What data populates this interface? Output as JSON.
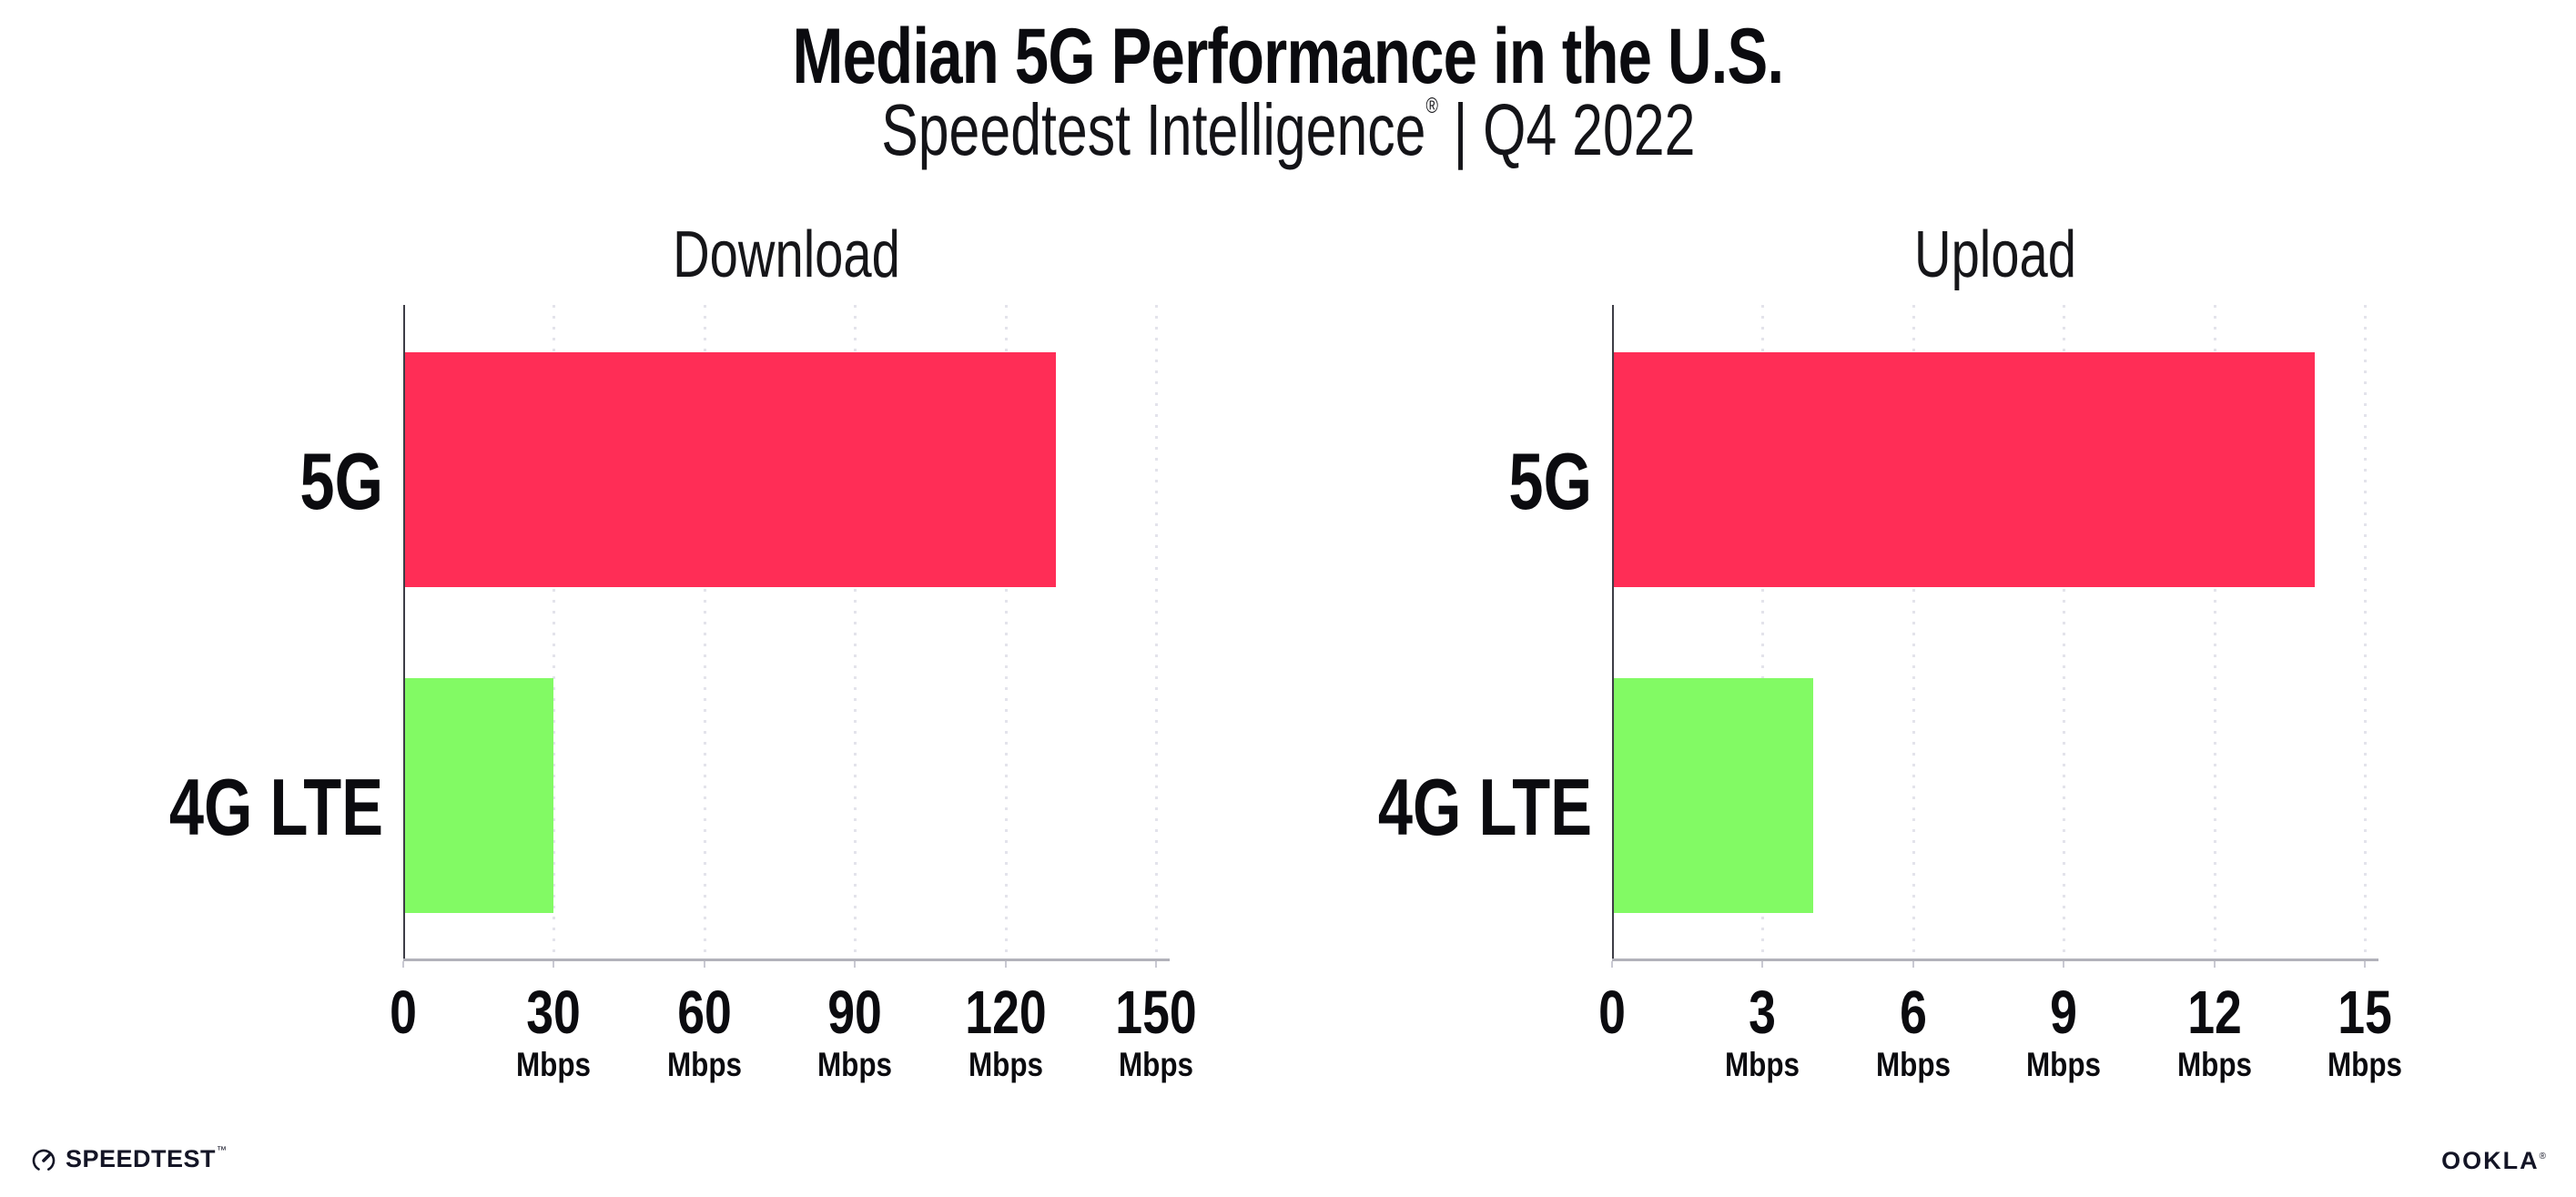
{
  "header": {
    "title": "Median 5G Performance in the U.S.",
    "subtitle_brand": "Speedtest Intelligence",
    "subtitle_registered": "®",
    "subtitle_separator": "|",
    "subtitle_period": "Q4 2022"
  },
  "chart_data": [
    {
      "type": "bar",
      "orientation": "horizontal",
      "title": "Download",
      "categories": [
        "5G",
        "4G LTE"
      ],
      "values": [
        130,
        30
      ],
      "unit": "Mbps",
      "xlim": [
        0,
        150
      ],
      "ticks": [
        0,
        30,
        60,
        90,
        120,
        150
      ],
      "grid": "dotted-vertical",
      "bar_colors": [
        "#FF2D56",
        "#82FA64"
      ]
    },
    {
      "type": "bar",
      "orientation": "horizontal",
      "title": "Upload",
      "categories": [
        "5G",
        "4G LTE"
      ],
      "values": [
        14,
        4
      ],
      "unit": "Mbps",
      "xlim": [
        0,
        15
      ],
      "ticks": [
        0,
        3,
        6,
        9,
        12,
        15
      ],
      "grid": "dotted-vertical",
      "bar_colors": [
        "#FF2D56",
        "#82FA64"
      ]
    }
  ],
  "footer": {
    "speedtest_logo_text": "SPEEDTEST",
    "speedtest_trademark": "™",
    "ookla_logo_text": "OOKLA",
    "ookla_registered": "®"
  },
  "colors": {
    "bar_5g": "#FF2D56",
    "bar_4g_lte": "#82FA64",
    "grid": "#E3E3EB",
    "axis_y": "#3D3D46",
    "axis_x": "#B2B2BA",
    "text": "#0B0B0F"
  }
}
